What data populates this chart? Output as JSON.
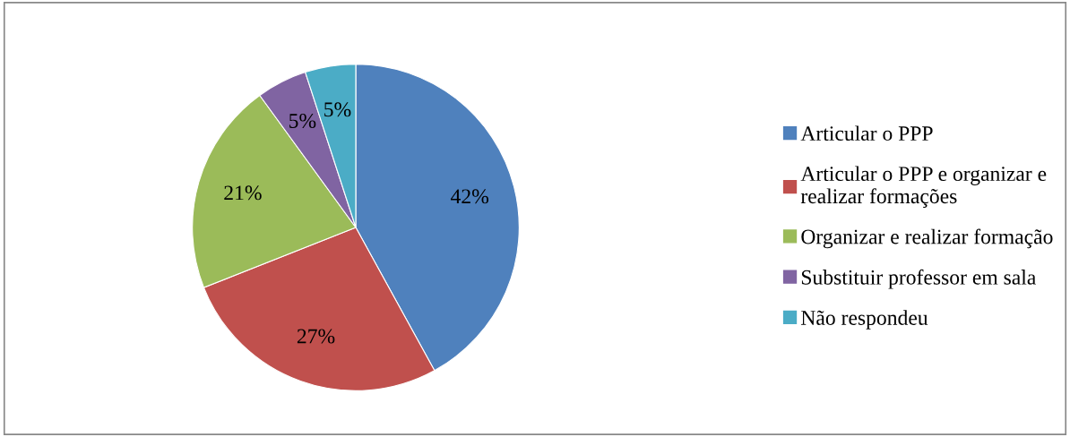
{
  "chart_data": {
    "type": "pie",
    "categories": [
      "Articular o PPP",
      "Articular o PPP e organizar e\nrealizar formações",
      "Organizar e realizar formação",
      "Substituir professor em sala",
      "Não respondeu"
    ],
    "values": [
      42,
      27,
      21,
      5,
      5
    ],
    "colors": [
      "#4f81bd",
      "#c0504d",
      "#9bbb59",
      "#8064a2",
      "#4bacc6"
    ],
    "value_labels": [
      "42%",
      "27%",
      "21%",
      "5%",
      "5%"
    ],
    "legend": "right"
  }
}
